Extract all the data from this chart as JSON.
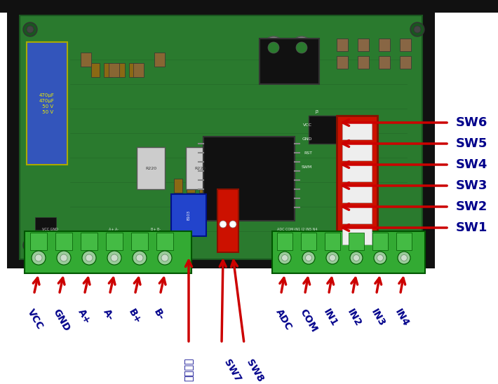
{
  "fig_width": 7.1,
  "fig_height": 5.48,
  "dpi": 100,
  "bg_color": "#ffffff",
  "frame_color": "#111111",
  "pcb_color": "#2a7a2e",
  "arrow_color": "#cc0000",
  "label_color": "#00008B",
  "right_labels": [
    "SW6",
    "SW5",
    "SW4",
    "SW3",
    "SW2",
    "SW1"
  ],
  "bottom_labels_left": [
    "VCC",
    "GND",
    "A+",
    "A-",
    "B+",
    "B-"
  ],
  "bottom_labels_mid": [
    "内部调速",
    "SW7",
    "SW8"
  ],
  "bottom_labels_right": [
    "ADC",
    "COM",
    "IN1",
    "IN2",
    "IN3",
    "IN4"
  ]
}
